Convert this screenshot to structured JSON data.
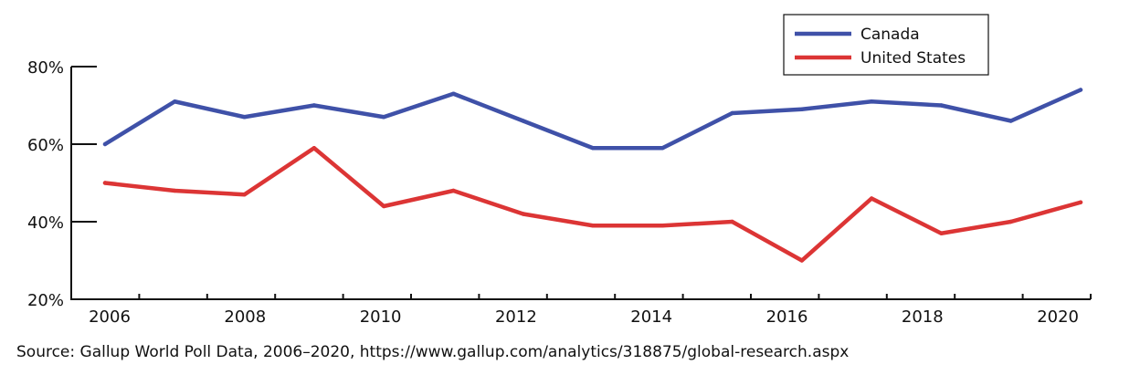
{
  "chart_data": {
    "type": "line",
    "title": "",
    "xlabel": "",
    "ylabel": "",
    "x": [
      2006,
      2007,
      2008,
      2009,
      2010,
      2011,
      2012,
      2013,
      2014,
      2015,
      2016,
      2017,
      2018,
      2019,
      2020
    ],
    "x_tick_labels": [
      "2006",
      "2008",
      "2010",
      "2012",
      "2014",
      "2016",
      "2018",
      "2020"
    ],
    "y_tick_labels": [
      "80%",
      "60%",
      "40%",
      "20%"
    ],
    "ylim": [
      20,
      80
    ],
    "y_unit": "%",
    "grid": false,
    "legend_position": "top-right",
    "series": [
      {
        "name": "Canada",
        "color": "#3f51a8",
        "values": [
          60,
          71,
          67,
          70,
          67,
          73,
          66,
          59,
          59,
          68,
          69,
          71,
          70,
          66,
          74
        ]
      },
      {
        "name": "United States",
        "color": "#dc3535",
        "values": [
          50,
          48,
          47,
          59,
          44,
          48,
          42,
          39,
          39,
          40,
          30,
          46,
          37,
          40,
          45
        ]
      }
    ]
  },
  "source": "Source: Gallup World Poll Data, 2006–2020, https://www.gallup.com/analytics/318875/global-research.aspx"
}
